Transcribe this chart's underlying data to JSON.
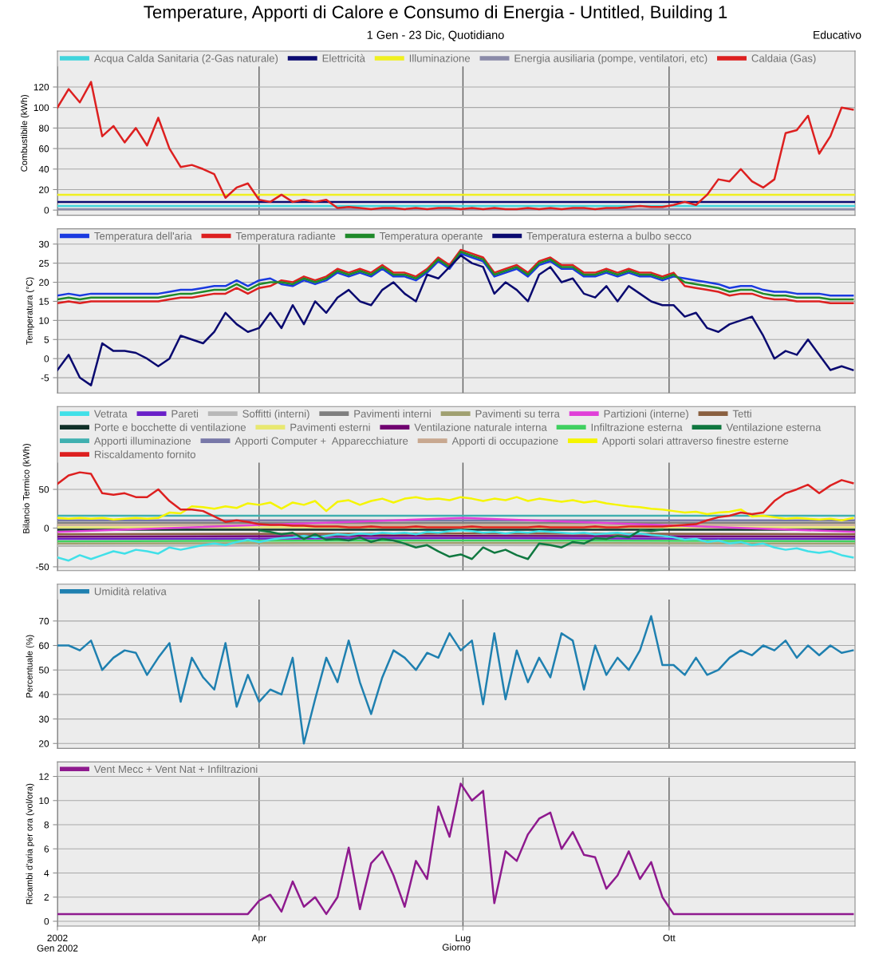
{
  "chart_data": [
    {
      "type": "line",
      "title": "Temperature, Apporti di Calore e Consumo di Energia - Untitled, Building 1",
      "subtitle": "1 Gen - 23 Dic, Quotidiano",
      "annotations": [
        "Educativo"
      ],
      "ylabel": "Combustibile (kWh)",
      "x": [
        "2002-01-01",
        "2002-01-06",
        "2002-01-11",
        "2002-01-16",
        "2002-01-21",
        "2002-01-26",
        "2002-01-31",
        "2002-02-05",
        "2002-02-10",
        "2002-02-15",
        "2002-02-20",
        "2002-02-25",
        "2002-03-02",
        "2002-03-07",
        "2002-03-12",
        "2002-03-17",
        "2002-03-22",
        "2002-03-27",
        "2002-04-01",
        "2002-04-06",
        "2002-04-11",
        "2002-04-16",
        "2002-04-21",
        "2002-04-26",
        "2002-05-01",
        "2002-05-06",
        "2002-05-11",
        "2002-05-16",
        "2002-05-21",
        "2002-05-26",
        "2002-05-31",
        "2002-06-05",
        "2002-06-10",
        "2002-06-15",
        "2002-06-20",
        "2002-06-25",
        "2002-06-30",
        "2002-07-05",
        "2002-07-10",
        "2002-07-15",
        "2002-07-20",
        "2002-07-25",
        "2002-07-30",
        "2002-08-04",
        "2002-08-09",
        "2002-08-14",
        "2002-08-19",
        "2002-08-24",
        "2002-08-29",
        "2002-09-03",
        "2002-09-08",
        "2002-09-13",
        "2002-09-18",
        "2002-09-23",
        "2002-09-28",
        "2002-10-03",
        "2002-10-08",
        "2002-10-13",
        "2002-10-18",
        "2002-10-23",
        "2002-10-28",
        "2002-11-02",
        "2002-11-07",
        "2002-11-12",
        "2002-11-17",
        "2002-11-22",
        "2002-11-27",
        "2002-12-02",
        "2002-12-07",
        "2002-12-12",
        "2002-12-17",
        "2002-12-22"
      ],
      "series": [
        {
          "name": "Acqua Calda Sanitaria (2-Gas naturale)",
          "color": "#40d4dc",
          "x": [
            "2002-01-01",
            "2002-12-23"
          ],
          "values": [
            4,
            4
          ]
        },
        {
          "name": "Elettricità",
          "color": "#0a0a70",
          "x": [
            "2002-01-01",
            "2002-12-23"
          ],
          "values": [
            8,
            8
          ]
        },
        {
          "name": "Illuminazione",
          "color": "#f0f020",
          "x": [
            "2002-01-01",
            "2002-12-23"
          ],
          "values": [
            15,
            15
          ]
        },
        {
          "name": "Energia ausiliaria (pompe, ventilatori, etc)",
          "color": "#8a8aa8",
          "x": [
            "2002-01-01",
            "2002-12-23"
          ],
          "values": [
            1,
            1
          ]
        },
        {
          "name": "Caldaia (Gas)",
          "color": "#dd2020",
          "values": [
            100,
            118,
            105,
            125,
            72,
            82,
            66,
            80,
            63,
            90,
            60,
            42,
            44,
            40,
            35,
            12,
            22,
            26,
            10,
            8,
            15,
            8,
            10,
            8,
            10,
            2,
            3,
            2,
            1,
            2,
            2,
            1,
            2,
            1,
            2,
            2,
            1,
            2,
            1,
            2,
            1,
            1,
            2,
            1,
            2,
            1,
            2,
            2,
            1,
            2,
            2,
            3,
            4,
            3,
            3,
            5,
            8,
            5,
            15,
            30,
            28,
            40,
            28,
            22,
            30,
            75,
            78,
            92,
            55,
            72,
            100,
            98
          ]
        }
      ],
      "xlim": [
        "2002-01-01",
        "2002-12-23"
      ],
      "xticks": [
        {
          "value": "2002-01-01",
          "label": null
        },
        {
          "value": "2002-04-01",
          "label": null
        },
        {
          "value": "2002-07-01",
          "label": null
        },
        {
          "value": "2002-10-01",
          "label": null
        }
      ],
      "ylim": [
        -5,
        155
      ],
      "yticks": [
        0,
        20,
        40,
        60,
        80,
        100,
        120
      ],
      "grid": true,
      "legend": "top left",
      "tick_labels": "y"
    },
    {
      "type": "line",
      "ylabel": "Temperatura (°C)",
      "x": [
        "2002-01-01",
        "2002-01-06",
        "2002-01-11",
        "2002-01-16",
        "2002-01-21",
        "2002-01-26",
        "2002-01-31",
        "2002-02-05",
        "2002-02-10",
        "2002-02-15",
        "2002-02-20",
        "2002-02-25",
        "2002-03-02",
        "2002-03-07",
        "2002-03-12",
        "2002-03-17",
        "2002-03-22",
        "2002-03-27",
        "2002-04-01",
        "2002-04-06",
        "2002-04-11",
        "2002-04-16",
        "2002-04-21",
        "2002-04-26",
        "2002-05-01",
        "2002-05-06",
        "2002-05-11",
        "2002-05-16",
        "2002-05-21",
        "2002-05-26",
        "2002-05-31",
        "2002-06-05",
        "2002-06-10",
        "2002-06-15",
        "2002-06-20",
        "2002-06-25",
        "2002-06-30",
        "2002-07-05",
        "2002-07-10",
        "2002-07-15",
        "2002-07-20",
        "2002-07-25",
        "2002-07-30",
        "2002-08-04",
        "2002-08-09",
        "2002-08-14",
        "2002-08-19",
        "2002-08-24",
        "2002-08-29",
        "2002-09-03",
        "2002-09-08",
        "2002-09-13",
        "2002-09-18",
        "2002-09-23",
        "2002-09-28",
        "2002-10-03",
        "2002-10-08",
        "2002-10-13",
        "2002-10-18",
        "2002-10-23",
        "2002-10-28",
        "2002-11-02",
        "2002-11-07",
        "2002-11-12",
        "2002-11-17",
        "2002-11-22",
        "2002-11-27",
        "2002-12-02",
        "2002-12-07",
        "2002-12-12",
        "2002-12-17",
        "2002-12-22"
      ],
      "series": [
        {
          "name": "Temperatura dell'aria",
          "color": "#1a3ae0",
          "values": [
            16.5,
            17,
            16.5,
            17,
            17,
            17,
            17,
            17,
            17,
            17,
            17.5,
            18,
            18,
            18.5,
            19,
            19,
            20.5,
            19,
            20.5,
            21,
            19.5,
            19,
            20.5,
            19.5,
            20.5,
            22.5,
            21.5,
            22.5,
            21.5,
            23.5,
            21.5,
            21.5,
            20.5,
            22.5,
            25.5,
            23.5,
            27.5,
            26.5,
            25.5,
            21.5,
            22.5,
            23.5,
            21.5,
            24.5,
            25.5,
            23.5,
            23.5,
            21.5,
            21.5,
            22.5,
            21.5,
            22.5,
            21.5,
            21.5,
            20.5,
            21.5,
            21,
            20.5,
            20,
            19.5,
            18.5,
            19,
            19,
            18,
            17.5,
            17.5,
            17,
            17,
            17,
            16.5,
            16.5,
            16.5
          ]
        },
        {
          "name": "Temperatura radiante",
          "color": "#dd2020",
          "values": [
            14.5,
            15,
            14.5,
            15,
            15,
            15,
            15,
            15,
            15,
            15,
            15.5,
            16,
            16,
            16.5,
            17,
            17,
            18.5,
            17,
            18.5,
            19,
            20.5,
            20,
            21.5,
            20.5,
            21.5,
            23.5,
            22.5,
            23.5,
            22.5,
            24.5,
            22.5,
            22.5,
            21.5,
            23.5,
            26.5,
            24.5,
            28.5,
            27.5,
            26.5,
            22.5,
            23.5,
            24.5,
            22.5,
            25.5,
            26.5,
            24.5,
            24.5,
            22.5,
            22.5,
            23.5,
            22.5,
            23.5,
            22.5,
            22.5,
            21.5,
            22.5,
            19,
            18.5,
            18,
            17.5,
            16.5,
            17,
            17,
            16,
            15.5,
            15.5,
            15,
            15,
            15,
            14.5,
            14.5,
            14.5
          ]
        },
        {
          "name": "Temperatura operante",
          "color": "#1f8a2a",
          "values": [
            15.5,
            16,
            15.5,
            16,
            16,
            16,
            16,
            16,
            16,
            16,
            16.5,
            17,
            17,
            17.5,
            18,
            18,
            19.5,
            18,
            19.5,
            20,
            20,
            19.5,
            21,
            20,
            21,
            23,
            22,
            23,
            22,
            24,
            22,
            22,
            21,
            23,
            26,
            24,
            28,
            27,
            26,
            22,
            23,
            24,
            22,
            25,
            26,
            24,
            24,
            22,
            22,
            23,
            22,
            23,
            22,
            22,
            21,
            22,
            20,
            19.5,
            19,
            18.5,
            17.5,
            18,
            18,
            17,
            16.5,
            16.5,
            16,
            16,
            16,
            15.5,
            15.5,
            15.5
          ]
        },
        {
          "name": "Temperatura esterna a bulbo secco",
          "color": "#0a0a70",
          "values": [
            -3,
            1,
            -5,
            -7,
            4,
            2,
            2,
            1.5,
            0,
            -2,
            0,
            6,
            5,
            4,
            7,
            12,
            9,
            7,
            8,
            12,
            8,
            14,
            9,
            15,
            12,
            16,
            18,
            15,
            14,
            18,
            20,
            17,
            15,
            22,
            21,
            24,
            27,
            25,
            24,
            17,
            20,
            18,
            15,
            22,
            24,
            20,
            21,
            17,
            16,
            19,
            15,
            19,
            17,
            15,
            14,
            14,
            11,
            12,
            8,
            7,
            9,
            10,
            11,
            6,
            0,
            2,
            1,
            5,
            1,
            -3,
            -2,
            -3
          ]
        }
      ],
      "xlim": [
        "2002-01-01",
        "2002-12-23"
      ],
      "xticks": [
        {
          "value": "2002-01-01",
          "label": null
        },
        {
          "value": "2002-04-01",
          "label": null
        },
        {
          "value": "2002-07-01",
          "label": null
        },
        {
          "value": "2002-10-01",
          "label": null
        }
      ],
      "ylim": [
        -9,
        34
      ],
      "yticks": [
        -5,
        0,
        5,
        10,
        15,
        20,
        25,
        30
      ],
      "grid": true,
      "legend": "top left",
      "tick_labels": "y"
    },
    {
      "type": "line",
      "ylabel": "Bilancio Termico (kWh)",
      "x": [
        "2002-01-01",
        "2002-01-06",
        "2002-01-11",
        "2002-01-16",
        "2002-01-21",
        "2002-01-26",
        "2002-01-31",
        "2002-02-05",
        "2002-02-10",
        "2002-02-15",
        "2002-02-20",
        "2002-02-25",
        "2002-03-02",
        "2002-03-07",
        "2002-03-12",
        "2002-03-17",
        "2002-03-22",
        "2002-03-27",
        "2002-04-01",
        "2002-04-06",
        "2002-04-11",
        "2002-04-16",
        "2002-04-21",
        "2002-04-26",
        "2002-05-01",
        "2002-05-06",
        "2002-05-11",
        "2002-05-16",
        "2002-05-21",
        "2002-05-26",
        "2002-05-31",
        "2002-06-05",
        "2002-06-10",
        "2002-06-15",
        "2002-06-20",
        "2002-06-25",
        "2002-06-30",
        "2002-07-05",
        "2002-07-10",
        "2002-07-15",
        "2002-07-20",
        "2002-07-25",
        "2002-07-30",
        "2002-08-04",
        "2002-08-09",
        "2002-08-14",
        "2002-08-19",
        "2002-08-24",
        "2002-08-29",
        "2002-09-03",
        "2002-09-08",
        "2002-09-13",
        "2002-09-18",
        "2002-09-23",
        "2002-09-28",
        "2002-10-03",
        "2002-10-08",
        "2002-10-13",
        "2002-10-18",
        "2002-10-23",
        "2002-10-28",
        "2002-11-02",
        "2002-11-07",
        "2002-11-12",
        "2002-11-17",
        "2002-11-22",
        "2002-11-27",
        "2002-12-02",
        "2002-12-07",
        "2002-12-12",
        "2002-12-17",
        "2002-12-22"
      ],
      "series": [
        {
          "name": "Vetrata",
          "color": "#40e0e8",
          "values": [
            -38,
            -42,
            -35,
            -40,
            -35,
            -30,
            -33,
            -28,
            -30,
            -33,
            -25,
            -28,
            -25,
            -22,
            -20,
            -22,
            -18,
            -15,
            -18,
            -15,
            -13,
            -12,
            -10,
            -12,
            -10,
            -8,
            -9,
            -7,
            -8,
            -6,
            -7,
            -6,
            -8,
            -5,
            -6,
            -4,
            -3,
            -4,
            -6,
            -5,
            -7,
            -5,
            -6,
            -4,
            -5,
            -6,
            -7,
            -6,
            -8,
            -7,
            -6,
            -8,
            -7,
            -9,
            -10,
            -12,
            -15,
            -14,
            -18,
            -16,
            -20,
            -18,
            -22,
            -20,
            -25,
            -28,
            -26,
            -30,
            -32,
            -30,
            -35,
            -38
          ]
        },
        {
          "name": "Pareti",
          "color": "#6a20c8",
          "x": [
            "2002-01-01",
            "2002-07-01",
            "2002-12-23"
          ],
          "values": [
            -14,
            -13,
            -14
          ]
        },
        {
          "name": "Soffitti (interni)",
          "color": "#b8b8b8",
          "x": [
            "2002-01-01",
            "2002-07-01",
            "2002-12-23"
          ],
          "values": [
            -23,
            -22,
            -23
          ]
        },
        {
          "name": "Pavimenti interni",
          "color": "#7f7f7f",
          "x": [
            "2002-01-01",
            "2002-12-23"
          ],
          "values": [
            7,
            7
          ]
        },
        {
          "name": "Pavimenti su terra",
          "color": "#a0a070",
          "x": [
            "2002-01-01",
            "2002-07-01",
            "2002-12-23"
          ],
          "values": [
            -20,
            -19,
            -20
          ]
        },
        {
          "name": "Partizioni (interne)",
          "color": "#e040d8",
          "x": [
            "2002-01-01",
            "2002-07-01",
            "2002-12-23"
          ],
          "values": [
            -5,
            13,
            -5
          ]
        },
        {
          "name": "Tetti",
          "color": "#8a6040",
          "x": [
            "2002-01-01",
            "2002-07-01",
            "2002-12-23"
          ],
          "values": [
            -8,
            -7,
            -8
          ]
        },
        {
          "name": "Porte e bocchette di ventilazione",
          "color": "#103028",
          "x": [
            "2002-01-01",
            "2002-12-23"
          ],
          "values": [
            -2,
            -2
          ]
        },
        {
          "name": "Pavimenti esterni",
          "color": "#e8e870",
          "x": [
            "2002-01-01",
            "2002-12-23"
          ],
          "values": [
            1,
            1
          ]
        },
        {
          "name": "Ventilazione naturale interna",
          "color": "#700070",
          "x": [
            "2002-01-01",
            "2002-07-01",
            "2002-12-23"
          ],
          "values": [
            -11,
            -10,
            -11
          ]
        },
        {
          "name": "Infiltrazione esterna",
          "color": "#40d060",
          "x": [
            "2002-01-01",
            "2002-07-01",
            "2002-12-23"
          ],
          "values": [
            -17,
            -16,
            -17
          ]
        },
        {
          "name": "Ventilazione esterna",
          "color": "#107840",
          "values": [
            null,
            null,
            null,
            null,
            null,
            null,
            null,
            null,
            null,
            null,
            null,
            null,
            null,
            null,
            null,
            null,
            null,
            null,
            -3,
            -5,
            -8,
            -6,
            -14,
            -8,
            -15,
            -14,
            -16,
            -12,
            -18,
            -14,
            -16,
            -20,
            -25,
            -22,
            -30,
            -37,
            -34,
            -40,
            -25,
            -32,
            -28,
            -35,
            -40,
            -20,
            -22,
            -25,
            -18,
            -20,
            -13,
            -14,
            -10,
            -12,
            -3,
            -4,
            -2,
            null,
            null,
            null,
            null,
            null,
            null,
            null,
            null,
            null,
            null,
            null,
            null,
            null,
            null,
            null,
            null,
            null
          ]
        },
        {
          "name": "Apporti illuminazione",
          "color": "#40b0b0",
          "x": [
            "2002-01-01",
            "2002-12-23"
          ],
          "values": [
            16,
            16
          ]
        },
        {
          "name": "Apporti Computer +  Apparecchiature",
          "color": "#7878a8",
          "x": [
            "2002-01-01",
            "2002-12-23"
          ],
          "values": [
            10,
            10
          ]
        },
        {
          "name": "Apporti di occupazione",
          "color": "#c8a890",
          "x": [
            "2002-01-01",
            "2002-12-23"
          ],
          "values": [
            4,
            4
          ]
        },
        {
          "name": "Apporti solari attraverso finestre esterne",
          "color": "#f5f500",
          "values": [
            13,
            12,
            13,
            12,
            13,
            11,
            12,
            13,
            12,
            13,
            20,
            19,
            28,
            27,
            25,
            28,
            26,
            32,
            30,
            33,
            25,
            33,
            30,
            35,
            22,
            34,
            36,
            30,
            35,
            38,
            33,
            38,
            40,
            37,
            38,
            36,
            40,
            38,
            35,
            38,
            36,
            40,
            35,
            38,
            36,
            34,
            36,
            33,
            35,
            32,
            30,
            28,
            27,
            25,
            24,
            22,
            20,
            21,
            18,
            20,
            21,
            24,
            15,
            16,
            14,
            12,
            13,
            12,
            11,
            12,
            10,
            13
          ]
        },
        {
          "name": "Riscaldamento fornito",
          "color": "#dd2020",
          "values": [
            57,
            68,
            72,
            70,
            45,
            43,
            45,
            40,
            40,
            50,
            35,
            24,
            24,
            22,
            15,
            8,
            10,
            8,
            5,
            4,
            4,
            3,
            3,
            2,
            2,
            2,
            1,
            1,
            2,
            1,
            1,
            1,
            2,
            1,
            1,
            1,
            1,
            2,
            1,
            1,
            1,
            1,
            1,
            2,
            1,
            1,
            1,
            1,
            2,
            1,
            1,
            2,
            2,
            2,
            2,
            3,
            4,
            5,
            10,
            14,
            16,
            20,
            18,
            20,
            35,
            45,
            50,
            56,
            45,
            55,
            62,
            58
          ]
        }
      ],
      "xlim": [
        "2002-01-01",
        "2002-12-23"
      ],
      "xticks": [
        {
          "value": "2002-01-01",
          "label": null
        },
        {
          "value": "2002-04-01",
          "label": null
        },
        {
          "value": "2002-07-01",
          "label": null
        },
        {
          "value": "2002-10-01",
          "label": null
        }
      ],
      "ylim": [
        -55,
        157
      ],
      "yticks": [
        -50,
        0,
        50
      ],
      "grid": true,
      "legend": "top left",
      "tick_labels": "y"
    },
    {
      "type": "line",
      "ylabel": "Percentuale (%)",
      "x": [
        "2002-01-01",
        "2002-01-06",
        "2002-01-11",
        "2002-01-16",
        "2002-01-21",
        "2002-01-26",
        "2002-01-31",
        "2002-02-05",
        "2002-02-10",
        "2002-02-15",
        "2002-02-20",
        "2002-02-25",
        "2002-03-02",
        "2002-03-07",
        "2002-03-12",
        "2002-03-17",
        "2002-03-22",
        "2002-03-27",
        "2002-04-01",
        "2002-04-06",
        "2002-04-11",
        "2002-04-16",
        "2002-04-21",
        "2002-04-26",
        "2002-05-01",
        "2002-05-06",
        "2002-05-11",
        "2002-05-16",
        "2002-05-21",
        "2002-05-26",
        "2002-05-31",
        "2002-06-05",
        "2002-06-10",
        "2002-06-15",
        "2002-06-20",
        "2002-06-25",
        "2002-06-30",
        "2002-07-05",
        "2002-07-10",
        "2002-07-15",
        "2002-07-20",
        "2002-07-25",
        "2002-07-30",
        "2002-08-04",
        "2002-08-09",
        "2002-08-14",
        "2002-08-19",
        "2002-08-24",
        "2002-08-29",
        "2002-09-03",
        "2002-09-08",
        "2002-09-13",
        "2002-09-18",
        "2002-09-23",
        "2002-09-28",
        "2002-10-03",
        "2002-10-08",
        "2002-10-13",
        "2002-10-18",
        "2002-10-23",
        "2002-10-28",
        "2002-11-02",
        "2002-11-07",
        "2002-11-12",
        "2002-11-17",
        "2002-11-22",
        "2002-11-27",
        "2002-12-02",
        "2002-12-07",
        "2002-12-12",
        "2002-12-17",
        "2002-12-22"
      ],
      "series": [
        {
          "name": "Umidità relativa",
          "color": "#1f80b0",
          "values": [
            60,
            60,
            58,
            62,
            50,
            55,
            58,
            57,
            48,
            55,
            61,
            37,
            55,
            47,
            42,
            61,
            35,
            48,
            37,
            42,
            40,
            55,
            20,
            38,
            55,
            45,
            62,
            45,
            32,
            47,
            58,
            55,
            50,
            57,
            55,
            65,
            58,
            62,
            36,
            65,
            38,
            58,
            45,
            55,
            47,
            65,
            62,
            42,
            60,
            48,
            55,
            50,
            58,
            72,
            52,
            52,
            48,
            55,
            48,
            50,
            55,
            58,
            56,
            60,
            58,
            62,
            55,
            60,
            56,
            60,
            57,
            58
          ]
        }
      ],
      "xlim": [
        "2002-01-01",
        "2002-12-23"
      ],
      "xticks": [
        {
          "value": "2002-01-01",
          "label": null
        },
        {
          "value": "2002-04-01",
          "label": null
        },
        {
          "value": "2002-07-01",
          "label": null
        },
        {
          "value": "2002-10-01",
          "label": null
        }
      ],
      "ylim": [
        18,
        85
      ],
      "yticks": [
        20,
        30,
        40,
        50,
        60,
        70
      ],
      "grid": true,
      "legend": "top left",
      "tick_labels": "y"
    },
    {
      "type": "line",
      "ylabel": "Ricambi d'aria per ora (vol/ora)",
      "xlabel": "Giorno",
      "x": [
        "2002-01-01",
        "2002-01-06",
        "2002-01-11",
        "2002-01-16",
        "2002-01-21",
        "2002-01-26",
        "2002-01-31",
        "2002-02-05",
        "2002-02-10",
        "2002-02-15",
        "2002-02-20",
        "2002-02-25",
        "2002-03-02",
        "2002-03-07",
        "2002-03-12",
        "2002-03-17",
        "2002-03-22",
        "2002-03-27",
        "2002-04-01",
        "2002-04-06",
        "2002-04-11",
        "2002-04-16",
        "2002-04-21",
        "2002-04-26",
        "2002-05-01",
        "2002-05-06",
        "2002-05-11",
        "2002-05-16",
        "2002-05-21",
        "2002-05-26",
        "2002-05-31",
        "2002-06-05",
        "2002-06-10",
        "2002-06-15",
        "2002-06-20",
        "2002-06-25",
        "2002-06-30",
        "2002-07-05",
        "2002-07-10",
        "2002-07-15",
        "2002-07-20",
        "2002-07-25",
        "2002-07-30",
        "2002-08-04",
        "2002-08-09",
        "2002-08-14",
        "2002-08-19",
        "2002-08-24",
        "2002-08-29",
        "2002-09-03",
        "2002-09-08",
        "2002-09-13",
        "2002-09-18",
        "2002-09-23",
        "2002-09-28",
        "2002-10-03",
        "2002-10-08",
        "2002-10-13",
        "2002-10-18",
        "2002-10-23",
        "2002-10-28",
        "2002-11-02",
        "2002-11-07",
        "2002-11-12",
        "2002-11-17",
        "2002-11-22",
        "2002-11-27",
        "2002-12-02",
        "2002-12-07",
        "2002-12-12",
        "2002-12-17",
        "2002-12-22"
      ],
      "series": [
        {
          "name": "Vent Mecc + Vent Nat + Infiltrazioni",
          "color": "#8e1a8e",
          "values": [
            0.6,
            0.6,
            0.6,
            0.6,
            0.6,
            0.6,
            0.6,
            0.6,
            0.6,
            0.6,
            0.6,
            0.6,
            0.6,
            0.6,
            0.6,
            0.6,
            0.6,
            0.6,
            1.7,
            2.2,
            0.8,
            3.3,
            1.2,
            2.0,
            0.6,
            2.0,
            6.1,
            1.0,
            4.8,
            5.8,
            3.8,
            1.2,
            5.0,
            3.5,
            9.5,
            7.0,
            11.4,
            10.0,
            10.8,
            1.5,
            5.8,
            5.0,
            7.2,
            8.5,
            9.0,
            6.0,
            7.4,
            5.5,
            5.3,
            2.7,
            3.8,
            5.8,
            3.5,
            4.9,
            2.0,
            0.6,
            0.6,
            0.6,
            0.6,
            0.6,
            0.6,
            0.6,
            0.6,
            0.6,
            0.6,
            0.6,
            0.6,
            0.6,
            0.6,
            0.6,
            0.6,
            0.6
          ]
        }
      ],
      "xlim": [
        "2002-01-01",
        "2002-12-23"
      ],
      "xticks": [
        {
          "value": "2002-01-01",
          "label": "2002\nGen 2002"
        },
        {
          "value": "2002-04-01",
          "label": "Apr"
        },
        {
          "value": "2002-07-01",
          "label": "Lug"
        },
        {
          "value": "2002-10-01",
          "label": "Ott"
        }
      ],
      "ylim": [
        -0.4,
        13.2
      ],
      "yticks": [
        0,
        2,
        4,
        6,
        8,
        10,
        12
      ],
      "grid": true,
      "legend": "top left"
    }
  ]
}
